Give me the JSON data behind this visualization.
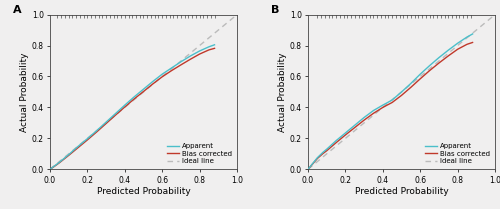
{
  "panel_A": {
    "label": "A",
    "apparent_x": [
      0.0,
      0.02,
      0.05,
      0.1,
      0.15,
      0.2,
      0.25,
      0.3,
      0.35,
      0.4,
      0.45,
      0.5,
      0.55,
      0.6,
      0.65,
      0.7,
      0.75,
      0.8,
      0.85,
      0.88
    ],
    "apparent_y": [
      0.0,
      0.018,
      0.045,
      0.095,
      0.148,
      0.198,
      0.25,
      0.305,
      0.36,
      0.415,
      0.468,
      0.518,
      0.568,
      0.615,
      0.655,
      0.695,
      0.732,
      0.765,
      0.792,
      0.805
    ],
    "bias_x": [
      0.0,
      0.02,
      0.05,
      0.1,
      0.15,
      0.2,
      0.25,
      0.3,
      0.35,
      0.4,
      0.45,
      0.5,
      0.55,
      0.6,
      0.65,
      0.7,
      0.75,
      0.8,
      0.85,
      0.88
    ],
    "bias_y": [
      0.0,
      0.016,
      0.042,
      0.09,
      0.14,
      0.19,
      0.242,
      0.296,
      0.35,
      0.403,
      0.455,
      0.503,
      0.552,
      0.598,
      0.638,
      0.675,
      0.711,
      0.745,
      0.772,
      0.782
    ],
    "rug_x": [
      0.04,
      0.06,
      0.08,
      0.1,
      0.12,
      0.14,
      0.16,
      0.18,
      0.2,
      0.22,
      0.24,
      0.26,
      0.28,
      0.3,
      0.32,
      0.34,
      0.36,
      0.38,
      0.4,
      0.42,
      0.44,
      0.46,
      0.48,
      0.5,
      0.52,
      0.54,
      0.56,
      0.58,
      0.6,
      0.62,
      0.64,
      0.66,
      0.68,
      0.7,
      0.72,
      0.74,
      0.76,
      0.78,
      0.8,
      0.82,
      0.84,
      0.86,
      0.88
    ]
  },
  "panel_B": {
    "label": "B",
    "apparent_x": [
      0.0,
      0.05,
      0.08,
      0.1,
      0.15,
      0.2,
      0.25,
      0.3,
      0.35,
      0.4,
      0.42,
      0.45,
      0.5,
      0.55,
      0.6,
      0.65,
      0.7,
      0.75,
      0.8,
      0.85,
      0.88
    ],
    "apparent_y": [
      0.0,
      0.075,
      0.11,
      0.13,
      0.185,
      0.235,
      0.285,
      0.335,
      0.38,
      0.415,
      0.428,
      0.448,
      0.5,
      0.555,
      0.615,
      0.67,
      0.722,
      0.77,
      0.815,
      0.855,
      0.875
    ],
    "bias_x": [
      0.0,
      0.05,
      0.08,
      0.1,
      0.15,
      0.2,
      0.25,
      0.3,
      0.35,
      0.4,
      0.42,
      0.45,
      0.5,
      0.55,
      0.6,
      0.65,
      0.7,
      0.75,
      0.8,
      0.85,
      0.88
    ],
    "bias_y": [
      0.0,
      0.07,
      0.102,
      0.12,
      0.172,
      0.222,
      0.27,
      0.318,
      0.362,
      0.4,
      0.413,
      0.432,
      0.478,
      0.53,
      0.585,
      0.638,
      0.687,
      0.733,
      0.776,
      0.808,
      0.82
    ],
    "rug_x": [
      0.05,
      0.07,
      0.09,
      0.11,
      0.13,
      0.15,
      0.17,
      0.19,
      0.21,
      0.23,
      0.25,
      0.27,
      0.29,
      0.31,
      0.33,
      0.35,
      0.37,
      0.39,
      0.41,
      0.43,
      0.45,
      0.47,
      0.49,
      0.51,
      0.53,
      0.55,
      0.57,
      0.59,
      0.61,
      0.63,
      0.65,
      0.67,
      0.69,
      0.71,
      0.73,
      0.75,
      0.77,
      0.79,
      0.81,
      0.83,
      0.85,
      0.87
    ]
  },
  "apparent_color": "#4BBFCA",
  "bias_color": "#C0392B",
  "ideal_color": "#BBBBBB",
  "bg_color": "#F0EFEF",
  "xlabel": "Predicted Probability",
  "ylabel": "Actual Probability",
  "xlim": [
    0.0,
    1.0
  ],
  "ylim": [
    0.0,
    1.0
  ],
  "xticks": [
    0.0,
    0.2,
    0.4,
    0.6,
    0.8,
    1.0
  ],
  "yticks": [
    0.0,
    0.2,
    0.4,
    0.6,
    0.8,
    1.0
  ],
  "legend_apparent": "Apparent",
  "legend_bias": "Bias corrected",
  "legend_ideal": "Ideal line",
  "tick_fontsize": 5.5,
  "label_fontsize": 6.5,
  "legend_fontsize": 5.0,
  "line_width": 1.0,
  "panel_label_fontsize": 8
}
